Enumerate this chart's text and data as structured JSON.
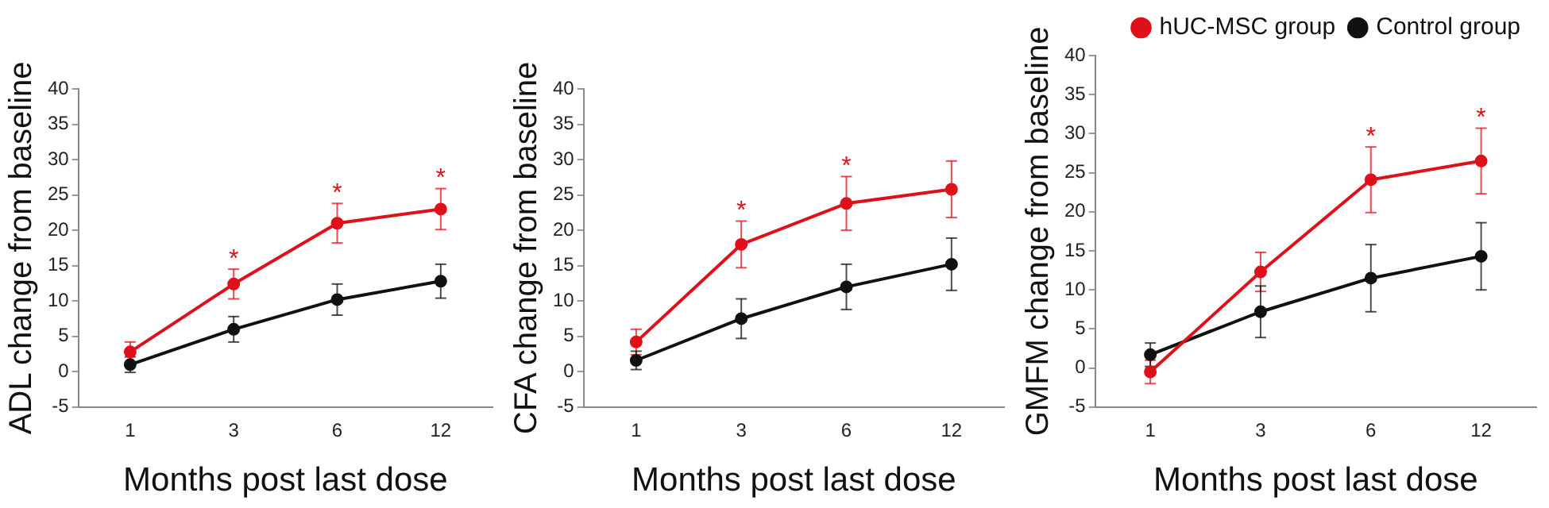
{
  "chart_data": [
    {
      "type": "line",
      "xlabel": "Months post last dose",
      "ylabel": "ADL change from baseline",
      "categories": [
        "1",
        "3",
        "6",
        "12"
      ],
      "ylim": [
        -5,
        40
      ],
      "yticks": [
        -5,
        0,
        5,
        10,
        15,
        20,
        25,
        30,
        35,
        40
      ],
      "grid": false,
      "legend": false,
      "marker": "circle",
      "line_style": "solid",
      "series": [
        {
          "color": "#e0101a",
          "values": [
            2.8,
            12.4,
            21,
            23
          ],
          "errors": [
            1.4,
            2.1,
            2.8,
            2.9
          ]
        },
        {
          "color": "#111111",
          "values": [
            1,
            6,
            10.2,
            12.8
          ],
          "errors": [
            1.1,
            1.8,
            2.2,
            2.4
          ]
        }
      ],
      "annotations": [
        {
          "text": "*",
          "x": "3",
          "y": 12.4
        },
        {
          "text": "*",
          "x": "6",
          "y": 21
        },
        {
          "text": "*",
          "x": "12",
          "y": 23
        }
      ]
    },
    {
      "type": "line",
      "xlabel": "Months post last dose",
      "ylabel": "CFA change from baseline",
      "categories": [
        "1",
        "3",
        "6",
        "12"
      ],
      "ylim": [
        -5,
        40
      ],
      "yticks": [
        -5,
        0,
        5,
        10,
        15,
        20,
        25,
        30,
        35,
        40
      ],
      "grid": false,
      "legend": false,
      "marker": "circle",
      "line_style": "solid",
      "series": [
        {
          "color": "#e0101a",
          "values": [
            4.2,
            18,
            23.8,
            25.8
          ],
          "errors": [
            1.8,
            3.3,
            3.8,
            4
          ]
        },
        {
          "color": "#111111",
          "values": [
            1.6,
            7.5,
            12,
            15.2
          ],
          "errors": [
            1.3,
            2.8,
            3.2,
            3.7
          ]
        }
      ],
      "annotations": [
        {
          "text": "*",
          "x": "3",
          "y": 18
        },
        {
          "text": "*",
          "x": "6",
          "y": 23.8
        }
      ]
    },
    {
      "type": "line",
      "xlabel": "Months post last dose",
      "ylabel": "GMFM change from baseline",
      "categories": [
        "1",
        "3",
        "6",
        "12"
      ],
      "ylim": [
        -5,
        40
      ],
      "yticks": [
        -5,
        0,
        5,
        10,
        15,
        20,
        25,
        30,
        35,
        40
      ],
      "grid": false,
      "legend": "top right",
      "marker": "circle",
      "line_style": "solid",
      "series": [
        {
          "name": "hUC-MSC group",
          "color": "#e0101a",
          "values": [
            -0.5,
            12.3,
            24.1,
            26.5
          ],
          "errors": [
            1.5,
            2.5,
            4.2,
            4.2
          ]
        },
        {
          "name": "Control group",
          "color": "#111111",
          "values": [
            1.7,
            7.2,
            11.5,
            14.3
          ],
          "errors": [
            1.5,
            3.3,
            4.3,
            4.3
          ]
        }
      ],
      "annotations": [
        {
          "text": "*",
          "x": "6",
          "y": 24.1
        },
        {
          "text": "*",
          "x": "12",
          "y": 26.5
        }
      ]
    }
  ]
}
